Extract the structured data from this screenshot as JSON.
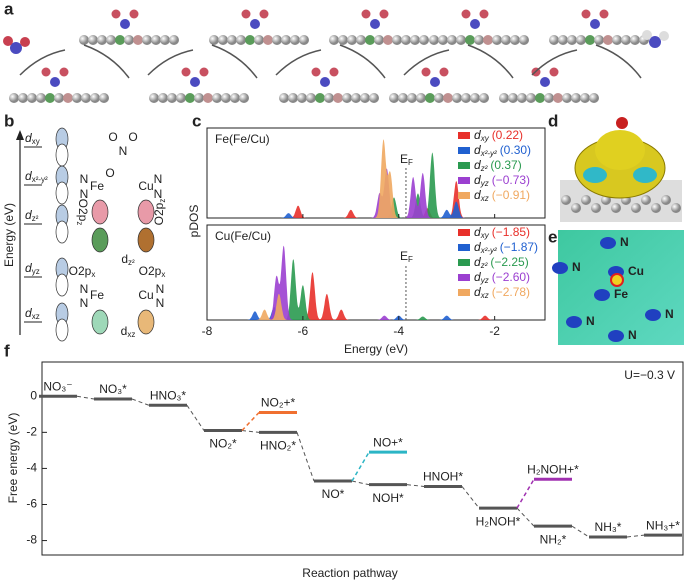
{
  "panel_labels": [
    "a",
    "b",
    "c",
    "d",
    "e",
    "f"
  ],
  "panel_b": {
    "axis_label": "Energy (eV)",
    "levels": [
      [
        "d",
        "xy"
      ],
      [
        "d",
        "x²-y²"
      ],
      [
        "d",
        "z²"
      ],
      [
        "d",
        "yz"
      ],
      [
        "d",
        "xz"
      ]
    ],
    "atoms": [
      "O",
      "N",
      "O",
      "O",
      "Fe",
      "Cu",
      "N",
      "N",
      "N",
      "N",
      "Fe",
      "Cu",
      "N",
      "N",
      "N",
      "N"
    ],
    "orbital_labels": [
      [
        "O2p",
        "z"
      ],
      [
        "O2p",
        "z"
      ],
      [
        "d",
        "z²"
      ],
      [
        "O2p",
        "x"
      ],
      [
        "O2p",
        "x"
      ],
      [
        "d",
        "xz"
      ]
    ]
  },
  "panel_e": {
    "atoms": [
      "N",
      "N",
      "Cu",
      "Fe",
      "N",
      "N",
      "N"
    ]
  },
  "chart_data": [
    {
      "type": "pdos",
      "title": "Fe(Fe/Cu)",
      "ylabel": "pDOS",
      "xlim": [
        -8,
        -0.95
      ],
      "xticks": [
        -8,
        -6,
        -4,
        -2
      ],
      "fermi": -3.85,
      "fermi_label": [
        "E",
        "F"
      ],
      "series": [
        {
          "orbital": [
            "d",
            "xy"
          ],
          "color": "#e8302a",
          "center": 0.22,
          "center_label": "(0.22)",
          "peaks": [
            [
              -6.1,
              0.15
            ],
            [
              -5.0,
              0.1
            ],
            [
              -2.8,
              0.45
            ],
            [
              -3.4,
              0.12
            ]
          ]
        },
        {
          "orbital": [
            "d",
            "x²-y²"
          ],
          "color": "#2060d0",
          "center": 0.3,
          "center_label": "(0.30)",
          "peaks": [
            [
              -6.3,
              0.06
            ],
            [
              -2.8,
              0.2
            ],
            [
              -3.0,
              0.1
            ]
          ]
        },
        {
          "orbital": [
            "d",
            "z²"
          ],
          "color": "#2a9a50",
          "center": 0.37,
          "center_label": "(0.37)",
          "peaks": [
            [
              -3.3,
              0.8
            ],
            [
              -3.6,
              0.3
            ],
            [
              -4.1,
              0.25
            ]
          ]
        },
        {
          "orbital": [
            "d",
            "yz"
          ],
          "color": "#9b3fd0",
          "center": -0.73,
          "center_label": "(−0.73)",
          "peaks": [
            [
              -4.25,
              0.6
            ],
            [
              -3.7,
              0.5
            ],
            [
              -3.5,
              0.55
            ],
            [
              -4.4,
              0.3
            ]
          ]
        },
        {
          "orbital": [
            "d",
            "xz"
          ],
          "color": "#f0a860",
          "center": -0.91,
          "center_label": "(−0.91)",
          "peaks": [
            [
              -4.32,
              0.95
            ],
            [
              -4.18,
              0.55
            ]
          ]
        }
      ]
    },
    {
      "type": "pdos",
      "title": "Cu(Fe/Cu)",
      "xlabel": "Energy (eV)",
      "xlim": [
        -8,
        -0.95
      ],
      "xticks": [
        -8,
        -6,
        -4,
        -2
      ],
      "fermi": -3.85,
      "fermi_label": [
        "E",
        "F"
      ],
      "series": [
        {
          "orbital": [
            "d",
            "xy"
          ],
          "color": "#e8302a",
          "center": -1.85,
          "center_label": "(−1.85)",
          "peaks": [
            [
              -5.8,
              0.55
            ],
            [
              -5.5,
              0.3
            ],
            [
              -5.2,
              0.12
            ],
            [
              -2.2,
              0.05
            ]
          ]
        },
        {
          "orbital": [
            "d",
            "x²-y²"
          ],
          "color": "#2060d0",
          "center": -1.87,
          "center_label": "(−1.87)",
          "peaks": [
            [
              -7.0,
              0.1
            ],
            [
              -6.6,
              0.15
            ],
            [
              -4.0,
              0.05
            ],
            [
              -3.0,
              0.05
            ]
          ]
        },
        {
          "orbital": [
            "d",
            "z²"
          ],
          "color": "#2a9a50",
          "center": -2.25,
          "center_label": "(−2.25)",
          "peaks": [
            [
              -6.2,
              0.7
            ],
            [
              -6.0,
              0.4
            ],
            [
              -3.5,
              0.04
            ]
          ]
        },
        {
          "orbital": [
            "d",
            "yz"
          ],
          "color": "#9b3fd0",
          "center": -2.6,
          "center_label": "(−2.60)",
          "peaks": [
            [
              -6.4,
              0.85
            ],
            [
              -6.55,
              0.5
            ],
            [
              -4.3,
              0.05
            ]
          ]
        },
        {
          "orbital": [
            "d",
            "xz"
          ],
          "color": "#f0a860",
          "center": -2.78,
          "center_label": "(−2.78)",
          "peaks": [
            [
              -6.5,
              0.3
            ],
            [
              -6.8,
              0.12
            ]
          ]
        }
      ]
    },
    {
      "type": "free_energy",
      "ylabel": "Free energy (eV)",
      "xlabel": "Reaction pathway",
      "annotation": "U=−0.3 V",
      "ylim": [
        -8.8,
        1.9
      ],
      "yticks": [
        0,
        -2,
        -4,
        -6,
        -8
      ],
      "color": "#555555",
      "labels": [
        "NO₃⁻",
        "NO₃*",
        "HNO₃*",
        "NO₂*",
        "HNO₂*",
        "NO*",
        "NOH*",
        "HNOH*",
        "H₂NOH*",
        "NH₂*",
        "NH₃*",
        "NH₃+*"
      ],
      "values": [
        0,
        -0.15,
        -0.5,
        -1.9,
        -2.0,
        -4.7,
        -4.9,
        -5.0,
        -6.2,
        -7.2,
        -7.8,
        -7.7
      ],
      "branches": [
        {
          "from": 3,
          "label": "NO₂+*",
          "value": -0.9,
          "color": "#f07030"
        },
        {
          "from": 5,
          "label": "NO+*",
          "value": -3.1,
          "color": "#2bb5c5"
        },
        {
          "from": 8,
          "label": "H₂NOH+*",
          "value": -4.6,
          "color": "#a030b0"
        }
      ]
    }
  ]
}
